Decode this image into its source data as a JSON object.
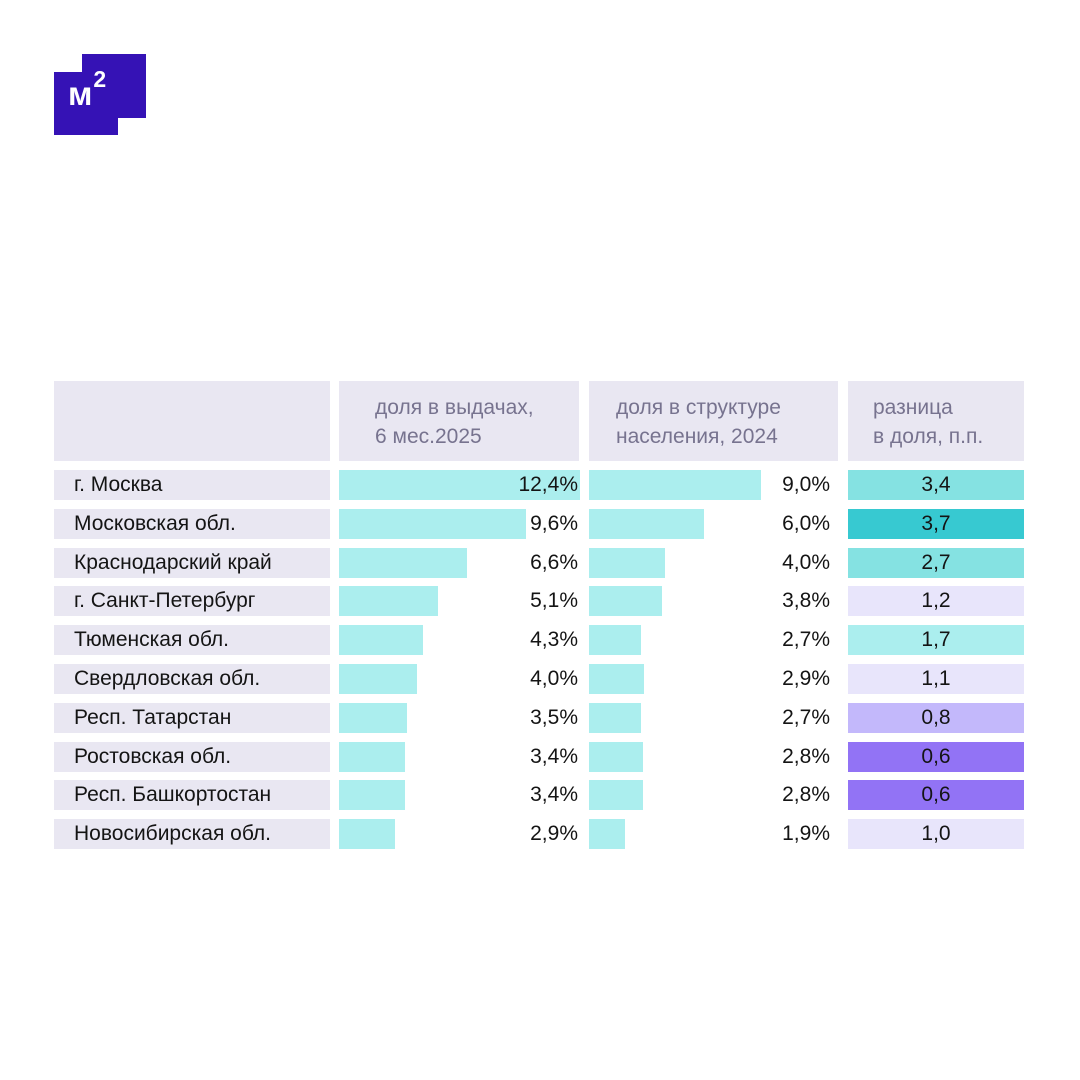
{
  "logo": {
    "text": "м",
    "sup": "2",
    "color": "#3512b5"
  },
  "colors": {
    "header_bg": "#e9e7f2",
    "bar": "#abeeee",
    "header_text": "#77738f"
  },
  "chart_data": {
    "type": "table",
    "columns": [
      "",
      [
        "доля в выдачах,",
        "6 мес.2025"
      ],
      [
        "доля в структуре",
        "населения, 2024"
      ],
      [
        "разница",
        "в доля, п.п."
      ]
    ],
    "rows": [
      {
        "region": "г. Москва",
        "share_issuance": 12.4,
        "share_issuance_label": "12,4%",
        "share_population": 9.0,
        "share_population_label": "9,0%",
        "diff": 3.4,
        "diff_label": "3,4",
        "diff_color": "#85e2e2"
      },
      {
        "region": "Московская обл.",
        "share_issuance": 9.6,
        "share_issuance_label": "9,6%",
        "share_population": 6.0,
        "share_population_label": "6,0%",
        "diff": 3.7,
        "diff_label": "3,7",
        "diff_color": "#37c9d1"
      },
      {
        "region": "Краснодарский край",
        "share_issuance": 6.6,
        "share_issuance_label": "6,6%",
        "share_population": 4.0,
        "share_population_label": "4,0%",
        "diff": 2.7,
        "diff_label": "2,7",
        "diff_color": "#85e2e2"
      },
      {
        "region": "г. Санкт-Петербург",
        "share_issuance": 5.1,
        "share_issuance_label": "5,1%",
        "share_population": 3.8,
        "share_population_label": "3,8%",
        "diff": 1.2,
        "diff_label": "1,2",
        "diff_color": "#e8e5fb"
      },
      {
        "region": "Тюменская обл.",
        "share_issuance": 4.3,
        "share_issuance_label": "4,3%",
        "share_population": 2.7,
        "share_population_label": "2,7%",
        "diff": 1.7,
        "diff_label": "1,7",
        "diff_color": "#abeeee"
      },
      {
        "region": "Свердловская обл.",
        "share_issuance": 4.0,
        "share_issuance_label": "4,0%",
        "share_population": 2.9,
        "share_population_label": "2,9%",
        "diff": 1.1,
        "diff_label": "1,1",
        "diff_color": "#e8e5fb"
      },
      {
        "region": "Респ. Татарстан",
        "share_issuance": 3.5,
        "share_issuance_label": "3,5%",
        "share_population": 2.7,
        "share_population_label": "2,7%",
        "diff": 0.8,
        "diff_label": "0,8",
        "diff_color": "#c3b8fb"
      },
      {
        "region": "Ростовская обл.",
        "share_issuance": 3.4,
        "share_issuance_label": "3,4%",
        "share_population": 2.8,
        "share_population_label": "2,8%",
        "diff": 0.6,
        "diff_label": "0,6",
        "diff_color": "#9273f5"
      },
      {
        "region": "Респ. Башкортостан",
        "share_issuance": 3.4,
        "share_issuance_label": "3,4%",
        "share_population": 2.8,
        "share_population_label": "2,8%",
        "diff": 0.6,
        "diff_label": "0,6",
        "diff_color": "#9273f5"
      },
      {
        "region": "Новосибирская обл.",
        "share_issuance": 2.9,
        "share_issuance_label": "2,9%",
        "share_population": 1.9,
        "share_population_label": "1,9%",
        "diff": 1.0,
        "diff_label": "1,0",
        "diff_color": "#e8e5fb"
      }
    ]
  }
}
